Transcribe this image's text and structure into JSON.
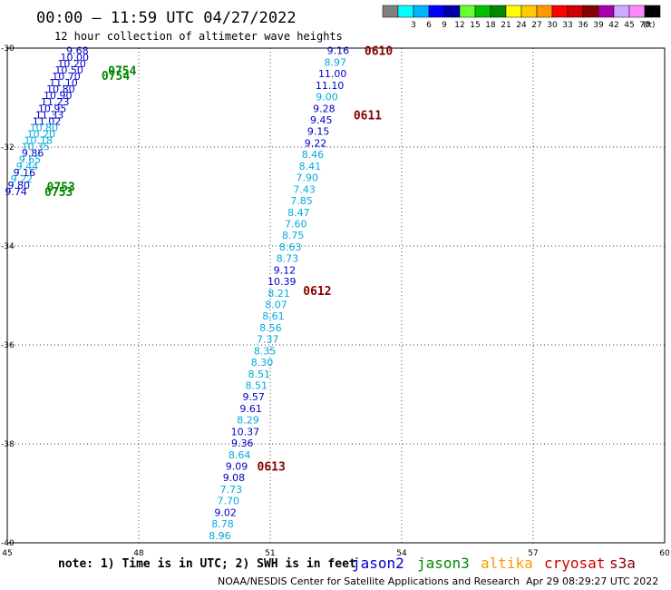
{
  "header": {
    "title": "00:00 – 11:59 UTC 04/27/2022",
    "subtitle": "12 hour collection of altimeter wave heights"
  },
  "legend": {
    "unit": "(ft)",
    "bins": [
      {
        "label": "",
        "color": "#808080"
      },
      {
        "label": "3",
        "color": "#00ffff"
      },
      {
        "label": "6",
        "color": "#00b4ff"
      },
      {
        "label": "9",
        "color": "#0000ff"
      },
      {
        "label": "12",
        "color": "#0000aa"
      },
      {
        "label": "15",
        "color": "#66ff33"
      },
      {
        "label": "18",
        "color": "#00c000"
      },
      {
        "label": "21",
        "color": "#008800"
      },
      {
        "label": "24",
        "color": "#ffff00"
      },
      {
        "label": "27",
        "color": "#ffcc00"
      },
      {
        "label": "30",
        "color": "#ff9900"
      },
      {
        "label": "33",
        "color": "#ff0000"
      },
      {
        "label": "36",
        "color": "#cc0000"
      },
      {
        "label": "39",
        "color": "#880000"
      },
      {
        "label": "42",
        "color": "#aa00aa"
      },
      {
        "label": "45",
        "color": "#ccaaff"
      },
      {
        "label": "70",
        "color": "#ff88ff"
      },
      {
        "label": "",
        "color": "#000000"
      }
    ]
  },
  "map": {
    "lon_range": [
      45,
      60
    ],
    "lat_range": [
      -40,
      -30
    ],
    "x_ticks": [
      "45",
      "48",
      "51",
      "54",
      "57",
      "60"
    ],
    "y_ticks": [
      "-30",
      "-32",
      "-34",
      "-36",
      "-38",
      "-40"
    ],
    "grid": "dotted"
  },
  "colors": {
    "light": "#00aadd",
    "dark": "#0000cc",
    "green": "#008800",
    "pass": "#880000"
  },
  "tracks": {
    "main": {
      "start": [
        52.55,
        -30.05
      ],
      "end": [
        49.85,
        -39.85
      ],
      "values": [
        "9.16",
        "8.97",
        "11.00",
        "11.10",
        "9.00",
        "9.28",
        "9.45",
        "9.15",
        "9.22",
        "8.46",
        "8.41",
        "7.90",
        "7.43",
        "7.85",
        "8.47",
        "7.60",
        "8.75",
        "8.63",
        "8.73",
        "9.12",
        "10.39",
        "8.21",
        "8.07",
        "8.61",
        "8.56",
        "7.37",
        "8.35",
        "8.30",
        "8.51",
        "8.51",
        "9.57",
        "9.61",
        "8.29",
        "10.37",
        "9.36",
        "8.64",
        "9.09",
        "9.08",
        "7.73",
        "7.70",
        "9.02",
        "8.78",
        "8.96"
      ],
      "levels": [
        1,
        0,
        1,
        1,
        0,
        1,
        1,
        1,
        1,
        0,
        0,
        0,
        0,
        0,
        0,
        0,
        0,
        0,
        0,
        1,
        1,
        0,
        0,
        0,
        0,
        0,
        0,
        0,
        0,
        0,
        1,
        1,
        0,
        1,
        1,
        0,
        1,
        1,
        0,
        0,
        1,
        0,
        0
      ]
    },
    "west": {
      "start": [
        46.6,
        -30.05
      ],
      "end": [
        45.2,
        -32.9
      ],
      "values": [
        "9.68",
        "10.00",
        "10.20",
        "10.50",
        "10.70",
        "11.10",
        "10.80",
        "10.90",
        "11.23",
        "10.95",
        "11.33",
        "11.02",
        "10.80",
        "10.20",
        "10.18",
        "10.35",
        "9.86",
        "9.65",
        "9.44",
        "9.16",
        "9.22",
        "9.80",
        "9.74"
      ],
      "levels": [
        1,
        1,
        1,
        1,
        1,
        1,
        1,
        1,
        1,
        1,
        1,
        1,
        0,
        0,
        0,
        0,
        1,
        0,
        0,
        1,
        0,
        1,
        1
      ]
    }
  },
  "pass_labels": [
    {
      "text": "0610",
      "lon": 53.15,
      "lat": -30.05,
      "color": "#880000"
    },
    {
      "text": "0611",
      "lon": 52.9,
      "lat": -31.35,
      "color": "#880000"
    },
    {
      "text": "0612",
      "lon": 51.75,
      "lat": -34.9,
      "color": "#880000"
    },
    {
      "text": "0613",
      "lon": 50.7,
      "lat": -38.45,
      "color": "#880000"
    },
    {
      "text": "0754",
      "lon": 47.3,
      "lat": -30.45,
      "color": "#008800"
    },
    {
      "text": "0754",
      "lon": 47.15,
      "lat": -30.55,
      "color": "#008800"
    },
    {
      "text": "0753",
      "lon": 45.9,
      "lat": -32.8,
      "color": "#008800"
    },
    {
      "text": "0753",
      "lon": 45.85,
      "lat": -32.9,
      "color": "#008800"
    }
  ],
  "footer": {
    "note": "note: 1) Time is in UTC; 2) SWH is in feet",
    "satellites": [
      {
        "name": "jason2",
        "color": "#0000cc"
      },
      {
        "name": "jason3",
        "color": "#008800"
      },
      {
        "name": "altika",
        "color": "#ff9900"
      },
      {
        "name": "cryosat",
        "color": "#cc0000"
      },
      {
        "name": "s3a",
        "color": "#880000"
      }
    ],
    "credit": "NOAA/NESDIS Center for Satellite Applications and Research",
    "timestamp": "Apr 29 08:29:27 UTC 2022"
  }
}
